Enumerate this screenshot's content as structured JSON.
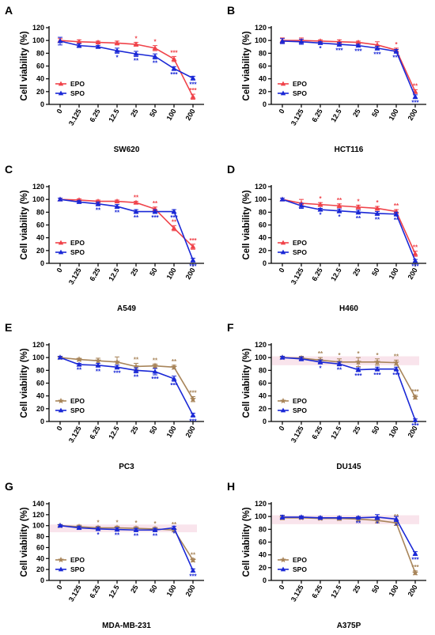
{
  "figure": {
    "colors": {
      "epo_red": "#f0434a",
      "spo_blue": "#1a28d6",
      "epo_brown": "#a8855a",
      "pink_band": "#f7d8e4",
      "axis": "#000000"
    }
  },
  "chart_data": [
    {
      "type": "line",
      "panel": "A",
      "xlabel": "SW620",
      "ylabel": "Cell viability (%)",
      "categories": [
        "0",
        "3.125",
        "6.25",
        "12.5",
        "25",
        "50",
        "100",
        "200"
      ],
      "ylim": [
        0,
        120
      ],
      "yticks": [
        "0",
        "20",
        "40",
        "60",
        "80",
        "100",
        "120"
      ],
      "legend_position": "bottom-left",
      "band": false,
      "series": [
        {
          "name": "EPO",
          "color": "#f0434a",
          "marker": "triangle",
          "values": [
            100,
            98,
            97,
            96,
            94,
            88,
            71,
            12
          ],
          "errors": [
            3,
            3,
            2,
            3,
            3,
            4,
            4,
            4
          ],
          "sig": [
            "",
            "",
            "",
            "",
            "*",
            "*",
            "***",
            "***"
          ]
        },
        {
          "name": "SPO",
          "color": "#1a28d6",
          "marker": "triangle",
          "values": [
            99,
            92,
            90,
            84,
            79,
            75,
            56,
            41
          ],
          "errors": [
            6,
            3,
            2,
            4,
            4,
            4,
            3,
            3
          ],
          "sig": [
            "",
            "",
            "",
            "*",
            "**",
            "**",
            "***",
            "***"
          ]
        }
      ]
    },
    {
      "type": "line",
      "panel": "B",
      "xlabel": "HCT116",
      "ylabel": "Cell viability (%)",
      "categories": [
        "0",
        "3.125",
        "6.25",
        "12.5",
        "25",
        "50",
        "100",
        "200"
      ],
      "ylim": [
        0,
        120
      ],
      "yticks": [
        "0",
        "20",
        "40",
        "60",
        "80",
        "100",
        "120"
      ],
      "legend_position": "bottom-left",
      "band": false,
      "series": [
        {
          "name": "EPO",
          "color": "#f0434a",
          "marker": "triangle",
          "values": [
            100,
            100,
            99,
            98,
            97,
            93,
            85,
            20
          ],
          "errors": [
            4,
            4,
            2,
            3,
            2,
            5,
            3,
            3
          ],
          "sig": [
            "",
            "",
            "",
            "",
            "",
            "",
            "*",
            "**"
          ]
        },
        {
          "name": "SPO",
          "color": "#1a28d6",
          "marker": "triangle",
          "values": [
            99,
            98,
            96,
            94,
            92,
            88,
            83,
            12
          ],
          "errors": [
            4,
            4,
            2,
            3,
            2,
            3,
            3,
            3
          ],
          "sig": [
            "",
            "",
            "*",
            "***",
            "***",
            "***",
            "***",
            "***"
          ]
        }
      ]
    },
    {
      "type": "line",
      "panel": "C",
      "xlabel": "A549",
      "ylabel": "Cell viability (%)",
      "categories": [
        "0",
        "3.125",
        "6.25",
        "12.5",
        "25",
        "50",
        "100",
        "200"
      ],
      "ylim": [
        0,
        120
      ],
      "yticks": [
        "0",
        "20",
        "40",
        "60",
        "80",
        "100",
        "120"
      ],
      "legend_position": "bottom-left",
      "band": false,
      "series": [
        {
          "name": "EPO",
          "color": "#f0434a",
          "marker": "triangle",
          "values": [
            100,
            99,
            97,
            97,
            95,
            85,
            55,
            26
          ],
          "errors": [
            2,
            2,
            2,
            2,
            2,
            3,
            4,
            4
          ],
          "sig": [
            "",
            "",
            "",
            "",
            "**",
            "**",
            "**",
            "***"
          ]
        },
        {
          "name": "SPO",
          "color": "#1a28d6",
          "marker": "triangle",
          "values": [
            100,
            96,
            93,
            89,
            81,
            81,
            81,
            5
          ],
          "errors": [
            2,
            2,
            3,
            3,
            3,
            3,
            3,
            3
          ],
          "sig": [
            "",
            "",
            "**",
            "**",
            "**",
            "***",
            "***",
            "***"
          ]
        }
      ]
    },
    {
      "type": "line",
      "panel": "D",
      "xlabel": "H460",
      "ylabel": "Cell viability (%)",
      "categories": [
        "0",
        "3.125",
        "6.25",
        "12.5",
        "25",
        "50",
        "100",
        "200"
      ],
      "ylim": [
        0,
        120
      ],
      "yticks": [
        "0",
        "20",
        "40",
        "60",
        "80",
        "100",
        "120"
      ],
      "legend_position": "bottom-left",
      "band": false,
      "series": [
        {
          "name": "EPO",
          "color": "#f0434a",
          "marker": "triangle",
          "values": [
            100,
            94,
            92,
            90,
            88,
            86,
            81,
            15
          ],
          "errors": [
            2,
            6,
            3,
            3,
            3,
            3,
            3,
            4
          ],
          "sig": [
            "",
            "",
            "*",
            "**",
            "*",
            "*",
            "**",
            "**"
          ]
        },
        {
          "name": "SPO",
          "color": "#1a28d6",
          "marker": "triangle",
          "values": [
            100,
            90,
            84,
            82,
            80,
            78,
            77,
            4
          ],
          "errors": [
            2,
            4,
            2,
            3,
            3,
            3,
            3,
            2
          ],
          "sig": [
            "",
            "",
            "*",
            "*",
            "**",
            "**",
            "**",
            "***"
          ]
        }
      ]
    },
    {
      "type": "line",
      "panel": "E",
      "xlabel": "PC3",
      "ylabel": "Cell viability (%)",
      "categories": [
        "0",
        "3.125",
        "6.25",
        "12.5",
        "25",
        "50",
        "100",
        "200"
      ],
      "ylim": [
        0,
        120
      ],
      "yticks": [
        "0",
        "20",
        "40",
        "60",
        "80",
        "100",
        "120"
      ],
      "legend_position": "bottom-left",
      "band": false,
      "series": [
        {
          "name": "EPO",
          "color": "#a8855a",
          "marker": "star",
          "values": [
            100,
            97,
            95,
            93,
            86,
            87,
            85,
            35
          ],
          "errors": [
            2,
            2,
            4,
            8,
            5,
            3,
            3,
            4
          ],
          "sig": [
            "",
            "",
            "",
            "",
            "**",
            "**",
            "**",
            "***"
          ]
        },
        {
          "name": "SPO",
          "color": "#1a28d6",
          "marker": "triangle",
          "values": [
            100,
            89,
            88,
            85,
            80,
            78,
            67,
            10
          ],
          "errors": [
            2,
            2,
            3,
            3,
            4,
            5,
            4,
            3
          ],
          "sig": [
            "",
            "**",
            "**",
            "***",
            "**",
            "***",
            "***",
            "***"
          ]
        }
      ]
    },
    {
      "type": "line",
      "panel": "F",
      "xlabel": "DU145",
      "ylabel": "Cell viability (%)",
      "categories": [
        "0",
        "3.125",
        "6.25",
        "12.5",
        "25",
        "50",
        "100",
        "200"
      ],
      "ylim": [
        0,
        120
      ],
      "yticks": [
        "0",
        "20",
        "40",
        "60",
        "80",
        "100",
        "120"
      ],
      "legend_position": "bottom-left",
      "band": true,
      "series": [
        {
          "name": "EPO",
          "color": "#a8855a",
          "marker": "star",
          "values": [
            100,
            99,
            96,
            93,
            93,
            93,
            92,
            38
          ],
          "errors": [
            2,
            3,
            4,
            5,
            7,
            5,
            4,
            3
          ],
          "sig": [
            "",
            "",
            "**",
            "*",
            "*",
            "*",
            "**",
            "***"
          ]
        },
        {
          "name": "SPO",
          "color": "#1a28d6",
          "marker": "triangle",
          "values": [
            100,
            98,
            93,
            90,
            81,
            82,
            82,
            2
          ],
          "errors": [
            2,
            3,
            3,
            3,
            3,
            3,
            3,
            2
          ],
          "sig": [
            "",
            "",
            "*",
            "**",
            "***",
            "***",
            "***",
            "***"
          ]
        }
      ]
    },
    {
      "type": "line",
      "panel": "G",
      "xlabel": "MDA-MB-231",
      "ylabel": "Cell viability (%)",
      "categories": [
        "0",
        "3.125",
        "6.25",
        "12.5",
        "25",
        "50",
        "100",
        "200"
      ],
      "ylim": [
        0,
        140
      ],
      "yticks": [
        "0",
        "20",
        "40",
        "60",
        "80",
        "100",
        "120",
        "140"
      ],
      "legend_position": "bottom-left",
      "band": true,
      "series": [
        {
          "name": "EPO",
          "color": "#a8855a",
          "marker": "star",
          "values": [
            100,
            98,
            96,
            96,
            95,
            94,
            92,
            37
          ],
          "errors": [
            2,
            3,
            3,
            3,
            3,
            3,
            3,
            3
          ],
          "sig": [
            "",
            "",
            "*",
            "*",
            "*",
            "*",
            "**",
            "**"
          ]
        },
        {
          "name": "SPO",
          "color": "#1a28d6",
          "marker": "triangle",
          "values": [
            100,
            96,
            94,
            93,
            92,
            92,
            96,
            18
          ],
          "errors": [
            2,
            3,
            3,
            3,
            3,
            3,
            3,
            3
          ],
          "sig": [
            "",
            "",
            "*",
            "**",
            "**",
            "**",
            "*",
            "***"
          ]
        }
      ]
    },
    {
      "type": "line",
      "panel": "H",
      "xlabel": "A375P",
      "ylabel": "Cell viability (%)",
      "categories": [
        "0",
        "3.125",
        "6.25",
        "12.5",
        "25",
        "50",
        "100",
        "200"
      ],
      "ylim": [
        0,
        120
      ],
      "yticks": [
        "0",
        "20",
        "40",
        "60",
        "80",
        "100",
        "120"
      ],
      "legend_position": "bottom-left",
      "band": true,
      "series": [
        {
          "name": "EPO",
          "color": "#a8855a",
          "marker": "star",
          "values": [
            98,
            98,
            97,
            97,
            96,
            94,
            90,
            12
          ],
          "errors": [
            3,
            2,
            2,
            3,
            3,
            4,
            4,
            3
          ],
          "sig": [
            "",
            "",
            "",
            "",
            "",
            "",
            "**",
            "***"
          ]
        },
        {
          "name": "SPO",
          "color": "#1a28d6",
          "marker": "triangle",
          "values": [
            99,
            99,
            98,
            98,
            98,
            99,
            96,
            42
          ],
          "errors": [
            3,
            2,
            2,
            2,
            2,
            4,
            4,
            3
          ],
          "sig": [
            "",
            "",
            "",
            "",
            "**",
            "*",
            "*",
            "***"
          ]
        }
      ]
    }
  ]
}
